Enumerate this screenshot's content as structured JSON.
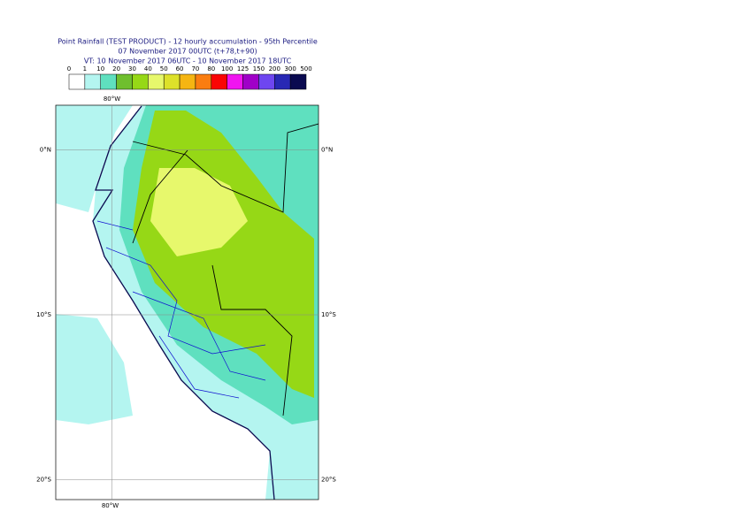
{
  "header": {
    "lines": [
      "Point Rainfall (TEST PRODUCT) - 12 hourly accumulation - 95th Percentile",
      "07 November 2017 00UTC (t+78,t+90)",
      "VT: 10 November 2017 06UTC - 10 November 2017 18UTC"
    ]
  },
  "colorbar": {
    "levels": [
      0,
      1,
      10,
      20,
      30,
      40,
      50,
      60,
      70,
      80,
      100,
      125,
      150,
      200,
      300,
      500
    ],
    "colors": [
      "#ffffff",
      "#b4f5f0",
      "#5fe0bf",
      "#6fbf2e",
      "#96d816",
      "#e7f86c",
      "#dde12a",
      "#f5b512",
      "#fa7d10",
      "#fa0505",
      "#f014f0",
      "#a000c8",
      "#6e46f0",
      "#2828b4",
      "#0a0a50"
    ]
  },
  "map": {
    "lonlim": [
      -83.4,
      -67.5
    ],
    "latlim": [
      2.7,
      -21.2
    ],
    "lon_ticks": [
      {
        "value": -80,
        "label": "80°W"
      }
    ],
    "lat_ticks": [
      {
        "value": 0,
        "label": "0°N"
      },
      {
        "value": -10,
        "label": "10°S"
      },
      {
        "value": -20,
        "label": "20°S"
      }
    ]
  }
}
